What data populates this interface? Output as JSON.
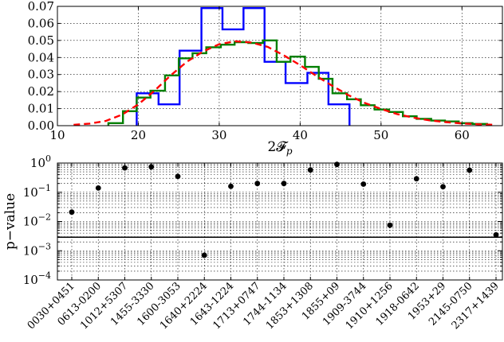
{
  "chart_data": [
    {
      "type": "line",
      "xlabel": "2𝓕",
      "xlabel_sub": "p",
      "ylabel": "",
      "xlim": [
        10,
        65
      ],
      "ylim": [
        0,
        0.07
      ],
      "x_ticks": [
        10,
        20,
        30,
        40,
        50,
        60
      ],
      "y_ticks": [
        0.0,
        0.01,
        0.02,
        0.03,
        0.04,
        0.05,
        0.06,
        0.07
      ],
      "y_tick_labels": [
        "0.00",
        "0.01",
        "0.02",
        "0.03",
        "0.04",
        "0.05",
        "0.06",
        "0.07"
      ],
      "grid": true,
      "colors": {
        "blue": "#0000ff",
        "green": "#007f00",
        "red": "#ff0000"
      },
      "series": [
        {
          "style": "step",
          "color": "#0000ff",
          "edges": [
            19.8,
            22.5,
            25.1,
            27.8,
            30.4,
            33.0,
            35.6,
            38.2,
            40.9,
            43.5,
            46.1
          ],
          "values": [
            0.019,
            0.0125,
            0.044,
            0.069,
            0.0565,
            0.069,
            0.0375,
            0.025,
            0.031,
            0.0125
          ]
        },
        {
          "style": "step",
          "color": "#007f00",
          "edges": [
            16.3,
            18.1,
            19.8,
            21.5,
            23.3,
            25.0,
            26.7,
            28.4,
            30.2,
            31.9,
            33.6,
            35.4,
            37.1,
            38.8,
            40.6,
            42.3,
            44.0,
            45.8,
            47.5,
            49.2,
            51.0,
            52.7,
            54.4,
            56.2,
            57.9,
            59.6,
            61.3,
            63.1
          ],
          "values": [
            0.0015,
            0.0085,
            0.0165,
            0.0205,
            0.0295,
            0.0395,
            0.0425,
            0.046,
            0.0475,
            0.049,
            0.0485,
            0.05,
            0.0375,
            0.0405,
            0.0345,
            0.0275,
            0.019,
            0.0155,
            0.012,
            0.0095,
            0.008,
            0.0055,
            0.004,
            0.003,
            0.0025,
            0.0015,
            0.001
          ]
        },
        {
          "style": "dashed",
          "color": "#ff0000",
          "x": [
            12,
            14,
            16,
            18,
            20,
            22,
            24,
            26,
            28,
            30,
            32,
            34,
            36,
            38,
            40,
            42,
            44,
            46,
            48,
            50,
            52,
            54,
            56,
            58,
            60,
            62,
            64
          ],
          "y": [
            0.0005,
            0.0012,
            0.0028,
            0.0065,
            0.0125,
            0.0205,
            0.0295,
            0.0375,
            0.0435,
            0.0478,
            0.0495,
            0.0488,
            0.0462,
            0.0412,
            0.0355,
            0.0292,
            0.0233,
            0.0178,
            0.0133,
            0.0098,
            0.0068,
            0.0047,
            0.0031,
            0.0021,
            0.0013,
            0.0008,
            0.0005
          ]
        }
      ]
    },
    {
      "type": "scatter",
      "ylabel": "p−value",
      "yscale": "log",
      "ylim": [
        0.0001,
        1
      ],
      "y_ticks": [
        0.0001,
        0.001,
        0.01,
        0.1,
        1
      ],
      "y_tick_labels": [
        {
          "base": "10",
          "exp": "−4"
        },
        {
          "base": "10",
          "exp": "−3"
        },
        {
          "base": "10",
          "exp": "−2"
        },
        {
          "base": "10",
          "exp": "−1"
        },
        {
          "base": "10",
          "exp": "0"
        }
      ],
      "grid": true,
      "categories": [
        "0030+0451",
        "0613-0200",
        "1012+5307",
        "1455-3330",
        "1600-3053",
        "1640+2224",
        "1643-1224",
        "1713+0747",
        "1744-1134",
        "1853+1308",
        "1855+09",
        "1909-3744",
        "1910+1256",
        "1918-0642",
        "1953+29",
        "2145-0750",
        "2317+1439"
      ],
      "values": [
        0.021,
        0.14,
        0.68,
        0.74,
        0.35,
        0.0007,
        0.16,
        0.2,
        0.2,
        0.58,
        0.9,
        0.19,
        0.0075,
        0.29,
        0.155,
        0.57,
        0.0035
      ],
      "hline": 0.0029
    }
  ]
}
